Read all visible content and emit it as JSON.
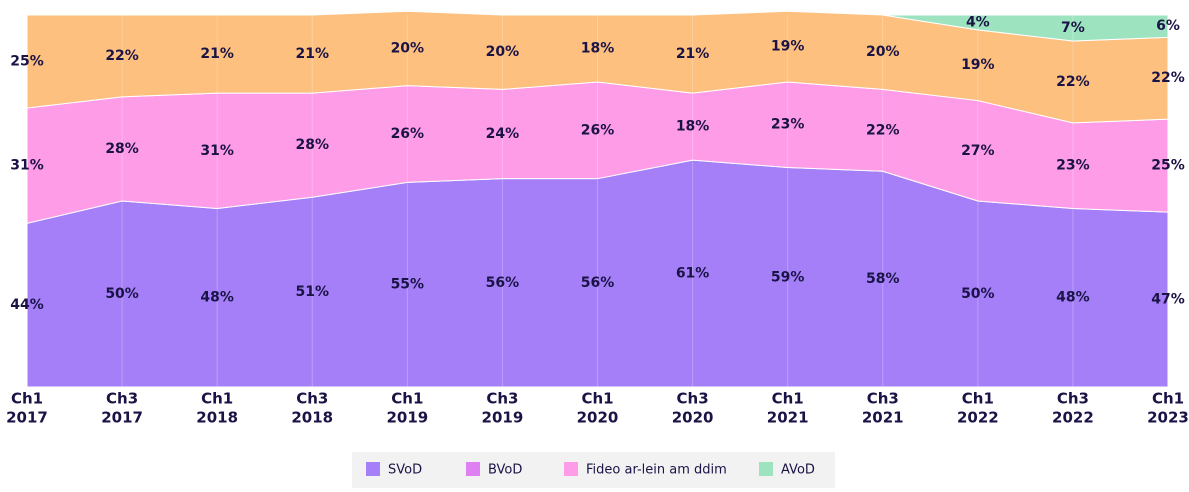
{
  "chart_data": {
    "type": "stacked_area",
    "categories": [
      [
        "Ch1",
        "2017"
      ],
      [
        "Ch3",
        "2017"
      ],
      [
        "Ch1",
        "2018"
      ],
      [
        "Ch3",
        "2018"
      ],
      [
        "Ch1",
        "2019"
      ],
      [
        "Ch3",
        "2019"
      ],
      [
        "Ch1",
        "2020"
      ],
      [
        "Ch3",
        "2020"
      ],
      [
        "Ch1",
        "2021"
      ],
      [
        "Ch3",
        "2021"
      ],
      [
        "Ch1",
        "2022"
      ],
      [
        "Ch3",
        "2022"
      ],
      [
        "Ch1",
        "2023"
      ]
    ],
    "ylim": [
      0,
      100
    ],
    "series": [
      {
        "name": "SVoD",
        "color": "#a57ff8",
        "values": [
          44,
          50,
          48,
          51,
          55,
          56,
          56,
          61,
          59,
          58,
          50,
          48,
          47
        ],
        "value_labels": [
          "44%",
          "50%",
          "48%",
          "51%",
          "55%",
          "56%",
          "56%",
          "61%",
          "59%",
          "58%",
          "50%",
          "48%",
          "47%"
        ]
      },
      {
        "name": "BVoD",
        "color": "#de80f2",
        "values": [
          null,
          null,
          null,
          null,
          null,
          null,
          null,
          null,
          null,
          null,
          null,
          null,
          null
        ]
      },
      {
        "name": "Fideo ar-lein am ddim",
        "color": "#ff9ce8",
        "values": [
          31,
          28,
          31,
          28,
          26,
          24,
          26,
          18,
          23,
          22,
          27,
          23,
          25
        ],
        "value_labels": [
          "31%",
          "28%",
          "31%",
          "28%",
          "26%",
          "24%",
          "26%",
          "18%",
          "23%",
          "22%",
          "27%",
          "23%",
          "25%"
        ]
      },
      {
        "color": "#fdc07f",
        "values": [
          25,
          22,
          21,
          21,
          20,
          20,
          18,
          21,
          19,
          20,
          19,
          22,
          22
        ],
        "value_labels": [
          "25%",
          "22%",
          "21%",
          "21%",
          "20%",
          "20%",
          "18%",
          "21%",
          "19%",
          "20%",
          "19%",
          "22%",
          "22%"
        ]
      },
      {
        "name": "AVoD",
        "color": "#9de3c0",
        "values": [
          null,
          null,
          null,
          null,
          null,
          null,
          null,
          null,
          null,
          0,
          4,
          7,
          6
        ],
        "value_labels": [
          null,
          null,
          null,
          null,
          null,
          null,
          null,
          null,
          null,
          null,
          "4%",
          "7%",
          "6%"
        ]
      }
    ]
  }
}
